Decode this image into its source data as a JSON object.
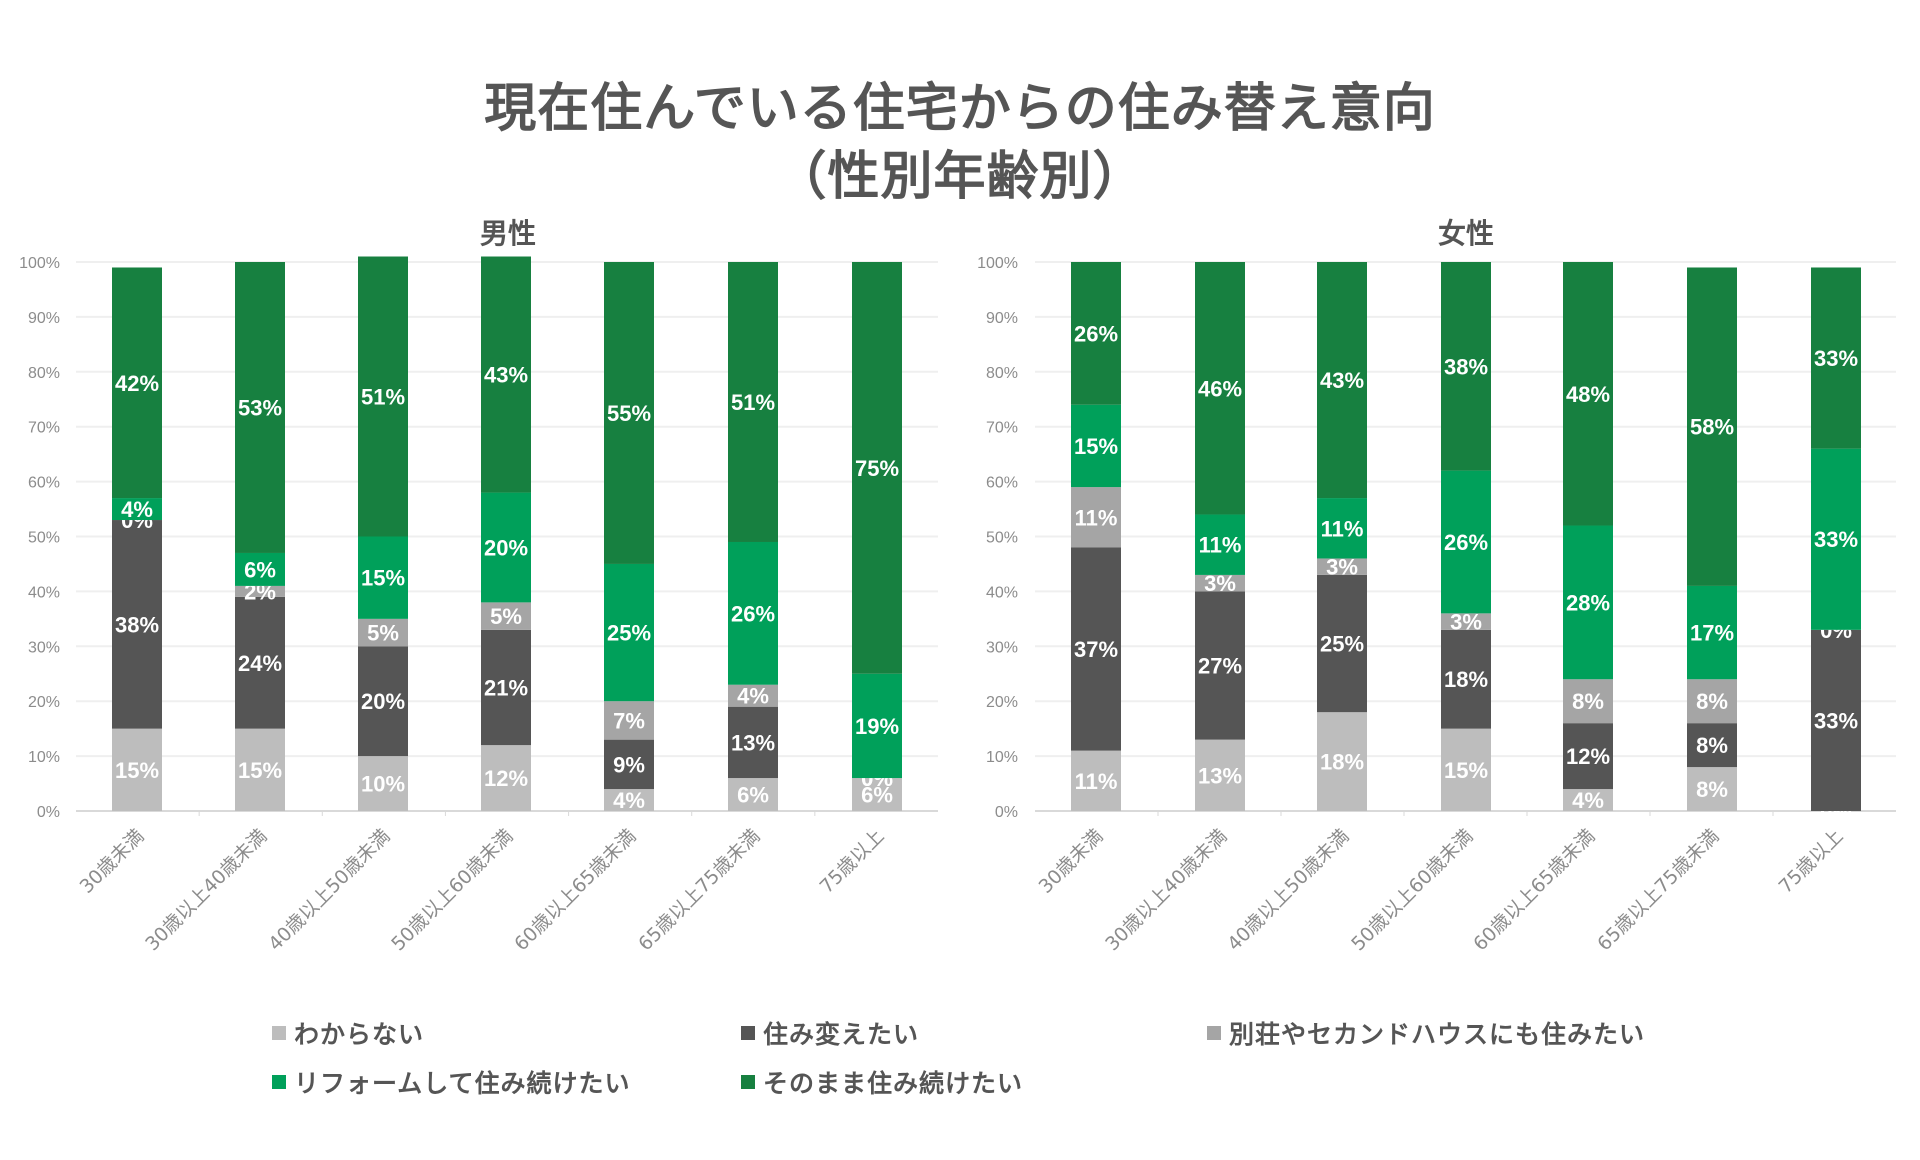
{
  "title": {
    "line1": "現在住んでいる住宅からの住み替え意向",
    "line2": "（性別年齢別）"
  },
  "legend": [
    {
      "key": "unknown",
      "label": "わからない",
      "color": "#BDBDBD"
    },
    {
      "key": "move",
      "label": "住み変えたい",
      "color": "#555555"
    },
    {
      "key": "second_home",
      "label": "別荘やセカンドハウスにも住みたい",
      "color": "#A5A5A5"
    },
    {
      "key": "reform",
      "label": "リフォームして住み続けたい",
      "color": "#00A05A"
    },
    {
      "key": "stay",
      "label": "そのまま住み続けたい",
      "color": "#178040"
    }
  ],
  "chart_data": [
    {
      "type": "bar",
      "stacked": true,
      "title": "男性",
      "xlabel": "",
      "ylabel": "",
      "ylim": [
        0,
        100
      ],
      "yticks": [
        "0%",
        "10%",
        "20%",
        "30%",
        "40%",
        "50%",
        "60%",
        "70%",
        "80%",
        "90%",
        "100%"
      ],
      "grid": true,
      "categories": [
        "30歳未満",
        "30歳以上40歳未満",
        "40歳以上50歳未満",
        "50歳以上60歳未満",
        "60歳以上65歳未満",
        "65歳以上75歳未満",
        "75歳以上"
      ],
      "series": [
        {
          "name": "わからない",
          "values": [
            15,
            15,
            10,
            12,
            4,
            6,
            6
          ]
        },
        {
          "name": "住み変えたい",
          "values": [
            38,
            24,
            20,
            21,
            9,
            13,
            0
          ]
        },
        {
          "name": "別荘やセカンドハウスにも住みたい",
          "values": [
            0,
            2,
            5,
            5,
            7,
            4,
            0
          ]
        },
        {
          "name": "リフォームして住み続けたい",
          "values": [
            4,
            6,
            15,
            20,
            25,
            26,
            19
          ]
        },
        {
          "name": "そのまま住み続けたい",
          "values": [
            42,
            53,
            51,
            43,
            55,
            51,
            75
          ]
        }
      ]
    },
    {
      "type": "bar",
      "stacked": true,
      "title": "女性",
      "xlabel": "",
      "ylabel": "",
      "ylim": [
        0,
        100
      ],
      "yticks": [
        "0%",
        "10%",
        "20%",
        "30%",
        "40%",
        "50%",
        "60%",
        "70%",
        "80%",
        "90%",
        "100%"
      ],
      "grid": true,
      "categories": [
        "30歳未満",
        "30歳以上40歳未満",
        "40歳以上50歳未満",
        "50歳以上60歳未満",
        "60歳以上65歳未満",
        "65歳以上75歳未満",
        "75歳以上"
      ],
      "series": [
        {
          "name": "わからない",
          "values": [
            11,
            13,
            18,
            15,
            4,
            8,
            0
          ]
        },
        {
          "name": "住み変えたい",
          "values": [
            37,
            27,
            25,
            18,
            12,
            8,
            33
          ]
        },
        {
          "name": "別荘やセカンドハウスにも住みたい",
          "values": [
            11,
            3,
            3,
            3,
            8,
            8,
            0
          ]
        },
        {
          "name": "リフォームして住み続けたい",
          "values": [
            15,
            11,
            11,
            26,
            28,
            17,
            33
          ]
        },
        {
          "name": "そのまま住み続けたい",
          "values": [
            26,
            46,
            43,
            38,
            48,
            58,
            33
          ]
        }
      ]
    }
  ]
}
